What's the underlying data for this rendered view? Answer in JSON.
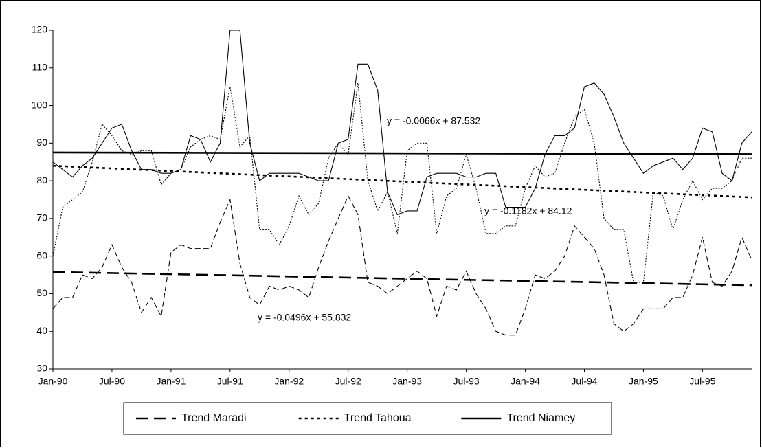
{
  "chart_data": {
    "type": "line",
    "categories": [
      "Jan-90",
      null,
      null,
      null,
      null,
      null,
      "Jul-90",
      null,
      null,
      null,
      null,
      null,
      "Jan-91",
      null,
      null,
      null,
      null,
      null,
      "Jul-91",
      null,
      null,
      null,
      null,
      null,
      "Jan-92",
      null,
      null,
      null,
      null,
      null,
      "Jul-92",
      null,
      null,
      null,
      null,
      null,
      "Jan-93",
      null,
      null,
      null,
      null,
      null,
      "Jul-93",
      null,
      null,
      null,
      null,
      null,
      "Jan-94",
      null,
      null,
      null,
      null,
      null,
      "Jul-94",
      null,
      null,
      null,
      null,
      null,
      "Jan-95",
      null,
      null,
      null,
      null,
      null,
      "Jul-95",
      null,
      null,
      null,
      null,
      null
    ],
    "ylim": [
      30,
      120
    ],
    "yticks": [
      30,
      40,
      50,
      60,
      70,
      80,
      90,
      100,
      110,
      120
    ],
    "series": [
      {
        "color": "#000000",
        "dash": "dashed",
        "values": [
          46,
          49,
          49,
          55,
          54,
          57,
          63,
          57,
          53,
          45,
          49,
          44,
          61,
          63,
          62,
          62,
          62,
          69,
          75,
          58,
          49,
          47,
          52,
          51,
          52,
          51,
          49,
          57,
          64,
          70,
          76,
          71,
          53,
          52,
          50,
          52,
          54,
          56,
          54,
          44,
          52,
          51,
          56,
          50,
          46,
          40,
          39,
          39,
          46,
          55,
          54,
          56,
          60,
          68,
          65,
          62,
          55,
          42,
          40,
          42,
          46,
          46,
          46,
          49,
          49,
          55,
          65,
          53,
          52,
          56,
          65,
          59
        ]
      },
      {
        "color": "#000000",
        "dash": "dotted",
        "values": [
          60,
          73,
          75,
          77,
          85,
          95,
          92,
          88,
          87,
          88,
          88,
          79,
          82,
          83,
          89,
          91,
          92,
          91,
          105,
          89,
          92,
          67,
          67,
          63,
          68,
          76,
          71,
          74,
          86,
          90,
          87,
          106,
          80,
          72,
          77,
          66,
          88,
          90,
          90,
          66,
          76,
          78,
          87,
          78,
          66,
          66,
          68,
          68,
          78,
          84,
          81,
          82,
          90,
          97,
          99,
          90,
          70,
          67,
          67,
          53,
          53,
          77,
          76,
          67,
          75,
          80,
          75,
          78,
          78,
          80,
          86,
          86
        ]
      },
      {
        "color": "#000000",
        "dash": "solid",
        "values": [
          85,
          83,
          81,
          84,
          86,
          90,
          94,
          95,
          88,
          83,
          83,
          82,
          82,
          83,
          92,
          91,
          85,
          90,
          120,
          120,
          90,
          80,
          82,
          82,
          82,
          82,
          81,
          80,
          80,
          90,
          91,
          111,
          111,
          104,
          77,
          71,
          72,
          72,
          81,
          82,
          82,
          82,
          81,
          81,
          82,
          82,
          73,
          73,
          73,
          78,
          87,
          92,
          92,
          94,
          105,
          106,
          103,
          97,
          90,
          86,
          82,
          84,
          85,
          86,
          83,
          86,
          94,
          93,
          82,
          80,
          90,
          93
        ]
      },
      {
        "name": "Trend Maradi",
        "color": "#000000",
        "dash": "long-dash",
        "weight": "thick",
        "x": [
          1,
          72
        ],
        "values": [
          55.78,
          52.26
        ]
      },
      {
        "name": "Trend Tahoua",
        "color": "#000000",
        "dash": "short-dash",
        "weight": "thick",
        "x": [
          1,
          72
        ],
        "values": [
          84.0,
          75.61
        ]
      },
      {
        "name": "Trend Niamey",
        "color": "#000000",
        "dash": "solid",
        "weight": "thick",
        "x": [
          1,
          72
        ],
        "values": [
          87.53,
          87.06
        ]
      }
    ],
    "annotations": [
      "y = -0.0066x + 87.532",
      "y = -0.1182x + 84.12",
      "y = -0.0496x + 55.832"
    ],
    "legend": "bottom"
  }
}
